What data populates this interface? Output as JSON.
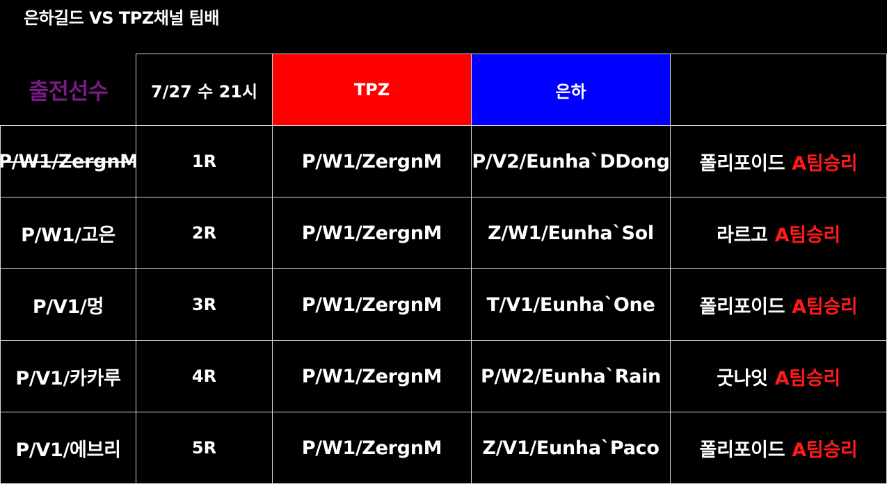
{
  "title": "은하길드 VS TPZ채널 팀배",
  "header": {
    "label": "출전선수",
    "date": "7/27 수 21시",
    "team_a": "TPZ",
    "team_b": "은하",
    "result": ""
  },
  "colors": {
    "team_a_bg": "#ff0000",
    "team_b_bg": "#0000ff",
    "label_color": "#7a1a86",
    "win_color": "#ff1a1a"
  },
  "rows": [
    {
      "player": "P/W1/ZergnM",
      "player_struck": true,
      "round": "1R",
      "team_a": "P/W1/ZergnM",
      "team_b": "P/V2/Eunha`DDong",
      "map": "폴리포이드",
      "win": "A팀승리"
    },
    {
      "player": "P/W1/고은",
      "player_struck": false,
      "round": "2R",
      "team_a": "P/W1/ZergnM",
      "team_b": "Z/W1/Eunha`Sol",
      "map": "라르고",
      "win": "A팀승리"
    },
    {
      "player": "P/V1/멍",
      "player_struck": false,
      "round": "3R",
      "team_a": "P/W1/ZergnM",
      "team_b": "T/V1/Eunha`One",
      "map": "폴리포이드",
      "win": "A팀승리"
    },
    {
      "player": "P/V1/카카루",
      "player_struck": false,
      "round": "4R",
      "team_a": "P/W1/ZergnM",
      "team_b": "P/W2/Eunha`Rain",
      "map": "굿나잇",
      "win": "A팀승리"
    },
    {
      "player": "P/V1/에브리",
      "player_struck": false,
      "round": "5R",
      "team_a": "P/W1/ZergnM",
      "team_b": "Z/V1/Eunha`Paco",
      "map": "폴리포이드",
      "win": "A팀승리"
    }
  ]
}
